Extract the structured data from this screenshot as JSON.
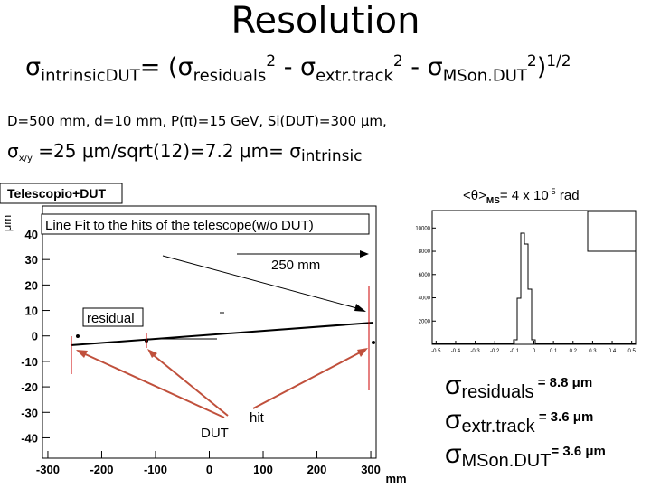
{
  "title": "Resolution",
  "formula": [
    {
      "text": "σ",
      "pos": "base"
    },
    {
      "text": "intrinsicDUT",
      "pos": "sub"
    },
    {
      "text": "= (σ",
      "pos": "base"
    },
    {
      "text": "residuals",
      "pos": "sub"
    },
    {
      "text": "2",
      "pos": "sup"
    },
    {
      "text": " - σ",
      "pos": "base"
    },
    {
      "text": "extr.track",
      "pos": "sub"
    },
    {
      "text": "2",
      "pos": "sup"
    },
    {
      "text": " - σ",
      "pos": "base"
    },
    {
      "text": "MSon.DUT",
      "pos": "sub"
    },
    {
      "text": "2",
      "pos": "sup"
    },
    {
      "text": ")",
      "pos": "base"
    },
    {
      "text": "1/2",
      "pos": "sup"
    }
  ],
  "parameters": "D=500 mm, d=10 mm, P(π)=15 GeV, Si(DUT)=300 μm,",
  "sigma_line": [
    {
      "text": "σ",
      "pos": "base"
    },
    {
      "text": "x/y",
      "pos": "sub"
    },
    {
      "text": " =25 μm/sqrt(12)=7.2 μm= σ",
      "pos": "base"
    },
    {
      "text": "intrinsic",
      "pos": "sub"
    }
  ],
  "plot": {
    "title": "Telescopio+DUT",
    "y_unit": "μm",
    "x_unit": "mm",
    "xlim": [
      -310,
      310
    ],
    "ylim": [
      -48,
      51
    ],
    "xticks": [
      -300,
      -200,
      -100,
      0,
      100,
      200,
      300
    ],
    "yticks": [
      -40,
      -30,
      -20,
      -10,
      0,
      10,
      20,
      30,
      40
    ],
    "annotations": {
      "fit": "Line Fit to the hits of the telescope(w/o DUT)",
      "distance": "250 mm",
      "residual": "residual",
      "hit": "hit",
      "dut": "DUT"
    }
  },
  "theta": [
    {
      "text": "<θ>",
      "pos": "base"
    },
    {
      "text": "MS",
      "pos": "sub"
    },
    {
      "text": "= 4 x 10",
      "pos": "base"
    },
    {
      "text": "-5",
      "pos": "sup"
    },
    {
      "text": " rad",
      "pos": "base"
    }
  ],
  "inset": {
    "xlim": [
      -0.52,
      0.52
    ],
    "ylim": [
      0,
      11500
    ],
    "xticks": [
      -0.5,
      -0.4,
      -0.3,
      -0.2,
      -0.1,
      0,
      0.1,
      0.2,
      0.3,
      0.4,
      0.5
    ],
    "yticks": [
      2000,
      4000,
      6000,
      8000,
      10000
    ]
  },
  "results": [
    {
      "sigma": "σ",
      "name": "residuals",
      "value": " = 8.8 μm"
    },
    {
      "sigma": "σ",
      "name": "extr.track",
      "value": " = 3.6 μm"
    },
    {
      "sigma": "σ",
      "name": "MSon.DUT",
      "value": "= 3.6 μm"
    }
  ]
}
